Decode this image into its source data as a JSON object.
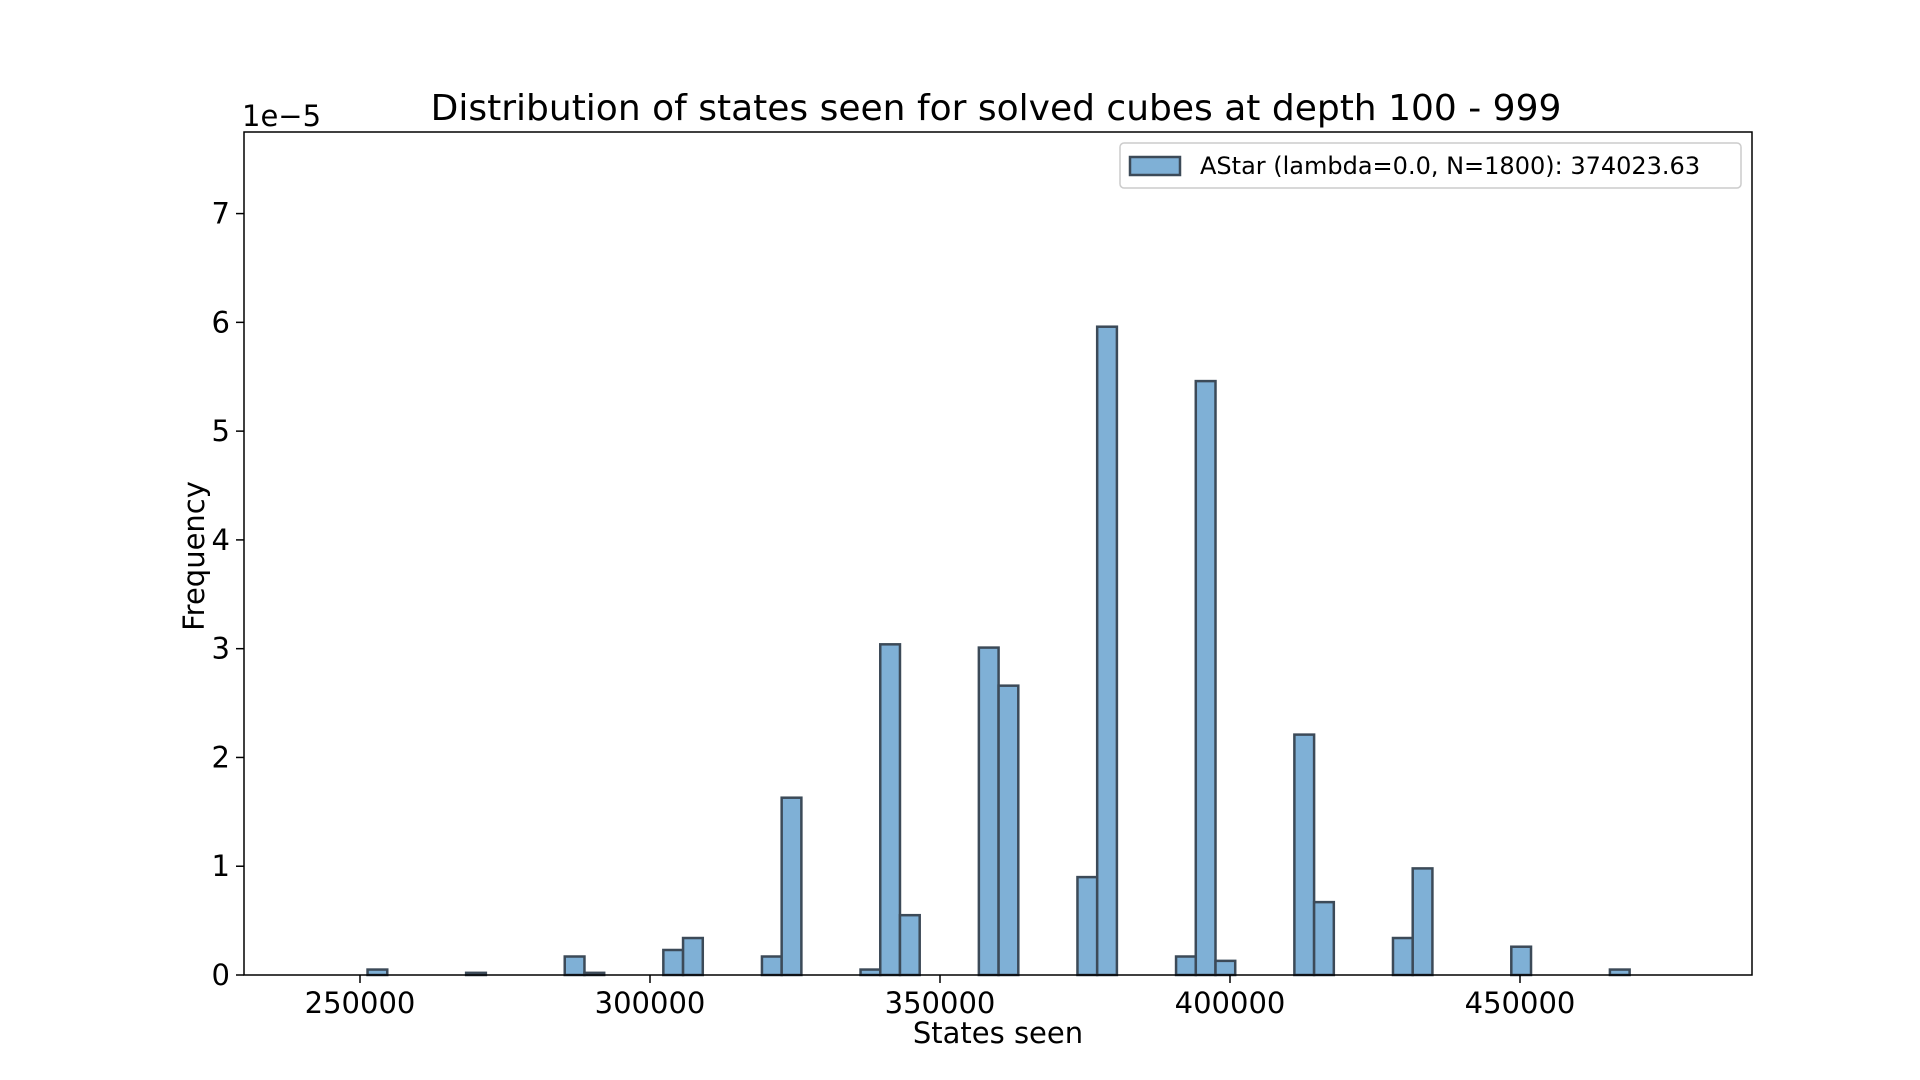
{
  "chart_data": {
    "type": "bar",
    "title": "Distribution of states seen for solved cubes at depth 100 - 999",
    "xlabel": "States seen",
    "ylabel": "Frequency",
    "y_scale_label": "1e−5",
    "xlim": [
      230000,
      490000
    ],
    "ylim": [
      0,
      7.75
    ],
    "x_ticks": [
      250000,
      300000,
      350000,
      400000,
      450000
    ],
    "x_tick_labels": [
      "250000",
      "300000",
      "350000",
      "400000",
      "450000"
    ],
    "y_ticks": [
      0,
      1,
      2,
      3,
      4,
      5,
      6,
      7
    ],
    "y_tick_labels": [
      "0",
      "1",
      "2",
      "3",
      "4",
      "5",
      "6",
      "7"
    ],
    "grid": false,
    "legend_position": "top-right",
    "bin_width": 3400,
    "series": [
      {
        "name": "AStar (lambda=0.0, N=1800): 374023.63",
        "color": "#7fb0d6",
        "edge_color": "#3c4a58",
        "bins": [
          {
            "start": 251300,
            "value": 0.05
          },
          {
            "start": 268300,
            "value": 0.02
          },
          {
            "start": 285300,
            "value": 0.17
          },
          {
            "start": 288700,
            "value": 0.02
          },
          {
            "start": 302300,
            "value": 0.23
          },
          {
            "start": 305700,
            "value": 0.34
          },
          {
            "start": 319300,
            "value": 0.17
          },
          {
            "start": 322700,
            "value": 1.63
          },
          {
            "start": 336300,
            "value": 0.05
          },
          {
            "start": 339700,
            "value": 3.04
          },
          {
            "start": 343100,
            "value": 0.55
          },
          {
            "start": 356700,
            "value": 3.01
          },
          {
            "start": 360100,
            "value": 2.66
          },
          {
            "start": 373700,
            "value": 0.9
          },
          {
            "start": 377100,
            "value": 5.96
          },
          {
            "start": 390700,
            "value": 0.17
          },
          {
            "start": 394100,
            "value": 5.46
          },
          {
            "start": 397500,
            "value": 0.13
          },
          {
            "start": 411100,
            "value": 2.21
          },
          {
            "start": 414500,
            "value": 0.67
          },
          {
            "start": 428100,
            "value": 0.34
          },
          {
            "start": 431500,
            "value": 0.98
          },
          {
            "start": 448500,
            "value": 0.26
          },
          {
            "start": 465500,
            "value": 0.05
          }
        ]
      }
    ]
  }
}
